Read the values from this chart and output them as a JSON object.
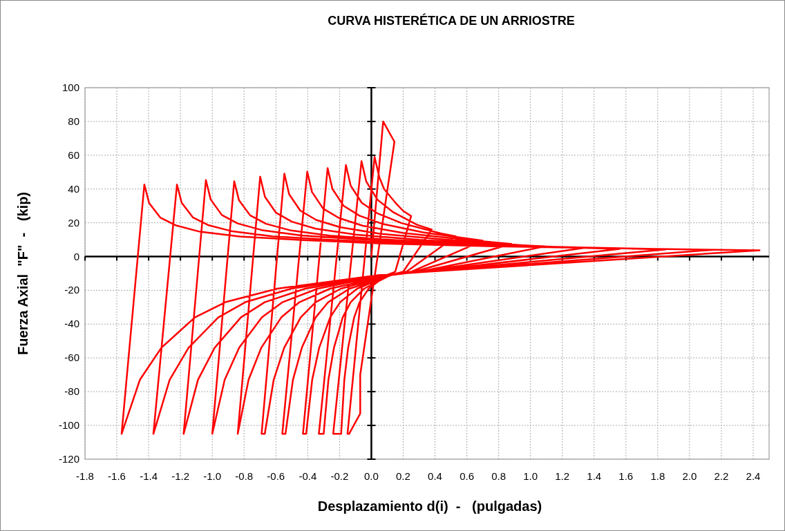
{
  "chart_data": {
    "type": "line",
    "title": "CURVA HISTERÉTICA DE UN ARRIOSTRE",
    "xlabel": "Desplazamiento d(i)  -   (pulgadas)",
    "ylabel": "Fuerza Axial  \"F\"  -   (kip)",
    "xlim": [
      -1.8,
      2.5
    ],
    "ylim": [
      -120,
      100
    ],
    "xticks": [
      -1.8,
      -1.6,
      -1.4,
      -1.2,
      {
        "value": -1,
        "label": "-1.0"
      },
      -0.8,
      -0.6,
      -0.4,
      -0.2,
      {
        "value": 0,
        "label": "0.0"
      },
      0.2,
      0.4,
      0.6,
      0.8,
      {
        "value": 1,
        "label": "1.0"
      },
      1.2,
      1.4,
      1.6,
      1.8,
      {
        "value": 2,
        "label": "2.0"
      },
      2.2,
      2.4
    ],
    "yticks": [
      -120,
      -100,
      -80,
      -60,
      -40,
      -20,
      0,
      20,
      40,
      60,
      80,
      100
    ],
    "grid": true,
    "marker": "none",
    "line_style": "solid",
    "series": [
      {
        "color": "#ff0000",
        "x": [
          0,
          0.074,
          0.145,
          -0.07,
          -0.07,
          -0.14,
          -0.15,
          0.02,
          0.05,
          0.08,
          0.15,
          0.2,
          0.25,
          0.15,
          0.096,
          -0.017,
          -0.074,
          -0.108,
          -0.146,
          -0.17,
          -0.19,
          -0.24,
          -0.062,
          -0.032,
          0.038,
          0.138,
          0.288,
          0.38,
          0.2,
          0.12,
          -0.045,
          -0.13,
          -0.18,
          -0.235,
          -0.27,
          -0.3,
          -0.33,
          -0.16,
          -0.13,
          -0.06,
          0.04,
          0.19,
          0.44,
          0.53,
          0.22,
          0.119,
          -0.089,
          -0.196,
          -0.259,
          -0.328,
          -0.372,
          -0.41,
          -0.43,
          -0.275,
          -0.245,
          -0.175,
          -0.075,
          0.075,
          0.325,
          0.7,
          0.25,
          0.124,
          -0.137,
          -0.271,
          -0.35,
          -0.437,
          -0.493,
          -0.54,
          -0.56,
          -0.403,
          -0.373,
          -0.303,
          -0.203,
          -0.053,
          0.197,
          0.597,
          0.88,
          0.27,
          0.12,
          -0.191,
          -0.35,
          -0.444,
          -0.548,
          -0.614,
          -0.67,
          -0.69,
          -0.547,
          -0.517,
          -0.447,
          -0.347,
          -0.197,
          0.053,
          0.453,
          0.953,
          1.09,
          0.3,
          0.118,
          -0.259,
          -0.452,
          -0.566,
          -0.692,
          -0.772,
          -0.84,
          -0.699,
          -0.669,
          -0.599,
          -0.499,
          -0.349,
          -0.099,
          0.301,
          0.801,
          1.33,
          0.3,
          0.092,
          -0.337,
          -0.558,
          -0.688,
          -0.831,
          -0.922,
          -1,
          -0.862,
          -0.832,
          -0.762,
          -0.662,
          -0.512,
          -0.262,
          0.138,
          0.638,
          1.338,
          1.56,
          0.32,
          0.08,
          -0.415,
          -0.67,
          -0.82,
          -0.985,
          -1.09,
          -1.18,
          -1.04,
          -1.01,
          -0.94,
          -0.84,
          -0.69,
          -0.44,
          -0.04,
          0.46,
          1.16,
          1.85,
          0.33,
          0.058,
          -0.503,
          -0.792,
          -0.962,
          -1.149,
          -1.268,
          -1.37,
          -1.222,
          -1.192,
          -1.122,
          -1.022,
          -0.872,
          -0.622,
          -0.222,
          0.278,
          0.978,
          1.778,
          2.15,
          0.35,
          0.043,
          -0.591,
          -0.917,
          -1.109,
          -1.32,
          -1.455,
          -1.57,
          -1.427,
          -1.397,
          -1.327,
          -1.227,
          -1.077,
          -0.827,
          -0.427,
          0.073,
          0.773,
          1.573,
          2.44,
          0.35
        ],
        "values": [
          0,
          80,
          68,
          -70,
          -93,
          -105,
          -105,
          59,
          47,
          40,
          32,
          27,
          24,
          -9,
          -11,
          -19,
          -27,
          -36,
          -54,
          -73,
          -105,
          -105,
          56.5,
          44.4,
          33.7,
          26.2,
          18.8,
          16,
          -9,
          -11,
          -19,
          -27,
          -36,
          -54,
          -73,
          -105,
          -105,
          54.2,
          42,
          31.8,
          25.5,
          19.8,
          13.6,
          12,
          -9,
          -11,
          -19,
          -27,
          -36,
          -54,
          -73,
          -105,
          -105,
          52.4,
          40.1,
          30.1,
          24.2,
          19.2,
          14.3,
          9.4,
          -9,
          -11,
          -19,
          -27,
          -36,
          -54,
          -73,
          -105,
          -105,
          50.3,
          38.2,
          28.4,
          22.8,
          18.2,
          14,
          9.9,
          7.5,
          -9,
          -11,
          -19,
          -27,
          -36,
          -54,
          -73,
          -105,
          -105,
          49.1,
          36.9,
          27.2,
          21.7,
          17.4,
          13.5,
          10.1,
          6.7,
          6,
          -9,
          -11,
          -19,
          -27,
          -36,
          -54,
          -73,
          -105,
          47.3,
          35.4,
          25.9,
          20.6,
          16.5,
          13,
          9.9,
          7.2,
          5,
          -9,
          -11,
          -19,
          -27,
          -36,
          -54,
          -73,
          -105,
          44.6,
          33.3,
          24.4,
          19.4,
          15.6,
          12.4,
          9.8,
          7.3,
          5.1,
          4.5,
          -9,
          -11,
          -19,
          -27,
          -36,
          -54,
          -73,
          -105,
          45.3,
          33.8,
          24.6,
          19.6,
          15.7,
          12.5,
          10,
          7.8,
          5.7,
          4.2,
          -9,
          -11,
          -19,
          -27,
          -36,
          -54,
          -73,
          -105,
          42.6,
          31.8,
          23.2,
          18.5,
          14.9,
          12,
          9.7,
          7.7,
          6,
          4.5,
          4,
          -9,
          -11,
          -19,
          -27,
          -36,
          -54,
          -73,
          -105,
          42.6,
          31.7,
          23.1,
          18.4,
          14.7,
          11.9,
          9.7,
          7.7,
          6.1,
          4.8,
          3.7,
          -9
        ]
      }
    ]
  }
}
